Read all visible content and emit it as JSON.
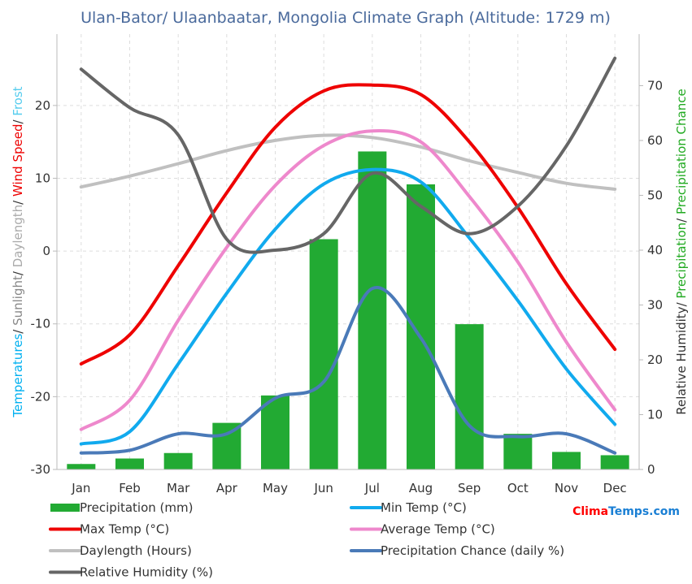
{
  "title": "Ulan-Bator/ Ulaanbaatar, Mongolia Climate Graph (Altitude: 1729 m)",
  "brand": {
    "part1": "Clima",
    "part2": "Temps",
    "part3": ".com",
    "color1": "#ff0000",
    "color2": "#1a7fd4"
  },
  "left_axis_label": [
    {
      "text": "Temperatures",
      "color": "#00b0f0"
    },
    {
      "text": "/ ",
      "color": "#333333"
    },
    {
      "text": "Sunlight",
      "color": "#888888"
    },
    {
      "text": "/ ",
      "color": "#333333"
    },
    {
      "text": "Daylength",
      "color": "#aaaaaa"
    },
    {
      "text": "/ ",
      "color": "#333333"
    },
    {
      "text": "Wind Speed",
      "color": "#ee0000"
    },
    {
      "text": "/ ",
      "color": "#333333"
    },
    {
      "text": "Frost",
      "color": "#55ccee"
    }
  ],
  "right_axis_label": [
    {
      "text": "Relative Humidity",
      "color": "#333333"
    },
    {
      "text": "/ ",
      "color": "#333333"
    },
    {
      "text": "Precipitation",
      "color": "#22aa22"
    },
    {
      "text": "/ ",
      "color": "#333333"
    },
    {
      "text": "Precipitation Chance",
      "color": "#22aa22"
    }
  ],
  "chart_data": {
    "type": "bar",
    "categories": [
      "Jan",
      "Feb",
      "Mar",
      "Apr",
      "May",
      "Jun",
      "Jul",
      "Aug",
      "Sep",
      "Oct",
      "Nov",
      "Dec"
    ],
    "left_axis": {
      "ticks": [
        "20",
        "10",
        "0",
        "-10",
        "-20",
        "-30"
      ],
      "min": -30,
      "max": 29.8
    },
    "right_axis": {
      "ticks": [
        "70",
        "60",
        "50",
        "40",
        "30",
        "20",
        "10",
        "0"
      ],
      "min": 0,
      "max": 79.4
    },
    "grid": true,
    "legend_position": "bottom",
    "bars": {
      "name": "Precipitation (mm)",
      "color": "#22aa33",
      "axis": "right",
      "values": [
        1,
        2,
        3,
        8.5,
        13.5,
        42,
        58,
        52,
        26.5,
        6.5,
        3.2,
        2.6
      ]
    },
    "series": [
      {
        "name": "Min Temp (°C)",
        "color": "#11aaee",
        "axis": "left",
        "values": [
          -26.5,
          -24.8,
          -15.5,
          -5.8,
          3,
          9.2,
          11.2,
          9.5,
          1.8,
          -6.8,
          -16.2,
          -23.8
        ]
      },
      {
        "name": "Max Temp (°C)",
        "color": "#ee0000",
        "axis": "left",
        "values": [
          -15.5,
          -11.5,
          -2,
          8,
          17,
          22,
          22.8,
          21.5,
          15,
          6,
          -4.5,
          -13.5
        ]
      },
      {
        "name": "Average Temp (°C)",
        "color": "#ee88cc",
        "axis": "left",
        "values": [
          -24.5,
          -20.5,
          -9.5,
          0.5,
          9,
          14.5,
          16.5,
          15,
          7.5,
          -1.5,
          -12.5,
          -21.8
        ]
      },
      {
        "name": "Daylength (Hours)",
        "color": "#c0c0c0",
        "axis": "left",
        "values": [
          8.8,
          10.3,
          12,
          13.8,
          15.2,
          15.9,
          15.6,
          14.3,
          12.4,
          10.8,
          9.3,
          8.5
        ]
      },
      {
        "name": "Precipitation Chance (daily %)",
        "color": "#4a7ab8",
        "axis": "right",
        "values": [
          3,
          3.5,
          6.5,
          6.5,
          13,
          16,
          33,
          24,
          8,
          6,
          6.5,
          3
        ]
      },
      {
        "name": "Relative Humidity (%)",
        "color": "#666666",
        "axis": "right",
        "values": [
          73,
          66,
          61,
          42,
          40,
          43,
          54,
          48,
          43,
          48,
          59,
          75
        ]
      }
    ]
  }
}
